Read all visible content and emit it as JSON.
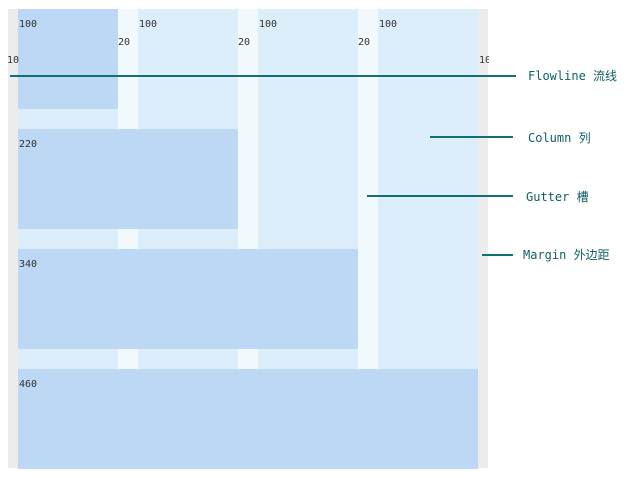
{
  "widths": {
    "column": "100",
    "gutter": "20",
    "margin": "10"
  },
  "spans": {
    "span1": "100",
    "span2": "220",
    "span3": "340",
    "span4": "460"
  },
  "legend": {
    "flowline": "Flowline 流线",
    "column": "Column 列",
    "gutter": "Gutter 槽",
    "margin": "Margin 外边距"
  },
  "colors": {
    "column": "#dbeef9",
    "gutter": "#f1f9fd",
    "block": "#bcd8f4",
    "flowline": "#0f7173",
    "margin": "#ececec"
  }
}
